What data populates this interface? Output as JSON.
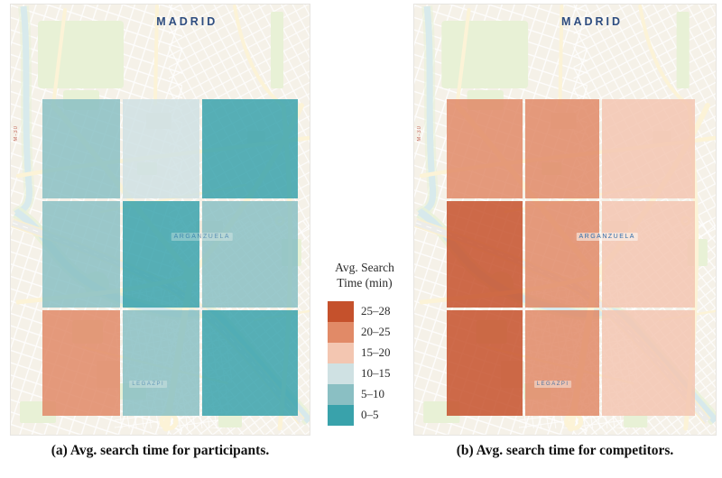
{
  "figure": {
    "panels": [
      {
        "id": "participants",
        "city_label": "MADRID",
        "caption": "(a) Avg. search time for participants.",
        "district_labels": [
          "ARGANZUELA",
          "LEGAZPI"
        ],
        "road_label": "M-30",
        "grid_bins": [
          [
            "5–10",
            "10–15",
            "0–5"
          ],
          [
            "5–10",
            "0–5",
            "5–10"
          ],
          [
            "20–25",
            "5–10",
            "0–5"
          ]
        ]
      },
      {
        "id": "competitors",
        "city_label": "MADRID",
        "caption": "(b) Avg. search time for competitors.",
        "district_labels": [
          "ARGANZUELA",
          "LEGAZPI"
        ],
        "road_label": "M-30",
        "grid_bins": [
          [
            "20–25",
            "20–25",
            "15–20"
          ],
          [
            "25–28",
            "20–25",
            "15–20"
          ],
          [
            "25–28",
            "20–25",
            "15–20"
          ]
        ]
      }
    ],
    "legend": {
      "title_line1": "Avg. Search",
      "title_line2": "Time (min)",
      "bins": [
        {
          "label": "25–28",
          "color": "#c5512c"
        },
        {
          "label": "20–25",
          "color": "#e18a67"
        },
        {
          "label": "15–20",
          "color": "#f3c6b1"
        },
        {
          "label": "10–15",
          "color": "#cfe1e3"
        },
        {
          "label": "5–10",
          "color": "#8abfc3"
        },
        {
          "label": "0–5",
          "color": "#39a2ab"
        }
      ]
    }
  },
  "chart_data": [
    {
      "type": "heatmap",
      "title": "Avg. search time for participants (min)",
      "rows": 3,
      "cols": 3,
      "cell_bins": [
        [
          "5–10",
          "10–15",
          "0–5"
        ],
        [
          "5–10",
          "0–5",
          "5–10"
        ],
        [
          "20–25",
          "5–10",
          "0–5"
        ]
      ],
      "legend_title": "Avg. Search Time (min)",
      "scale_bins": [
        "0–5",
        "5–10",
        "10–15",
        "15–20",
        "20–25",
        "25–28"
      ],
      "scale_colors": [
        "#39a2ab",
        "#8abfc3",
        "#cfe1e3",
        "#f3c6b1",
        "#e18a67",
        "#c5512c"
      ],
      "basemap_city": "MADRID"
    },
    {
      "type": "heatmap",
      "title": "Avg. search time for competitors (min)",
      "rows": 3,
      "cols": 3,
      "cell_bins": [
        [
          "20–25",
          "20–25",
          "15–20"
        ],
        [
          "25–28",
          "20–25",
          "15–20"
        ],
        [
          "25–28",
          "20–25",
          "15–20"
        ]
      ],
      "legend_title": "Avg. Search Time (min)",
      "scale_bins": [
        "0–5",
        "5–10",
        "10–15",
        "15–20",
        "20–25",
        "25–28"
      ],
      "scale_colors": [
        "#39a2ab",
        "#8abfc3",
        "#cfe1e3",
        "#f3c6b1",
        "#e18a67",
        "#c5512c"
      ],
      "basemap_city": "MADRID"
    }
  ]
}
